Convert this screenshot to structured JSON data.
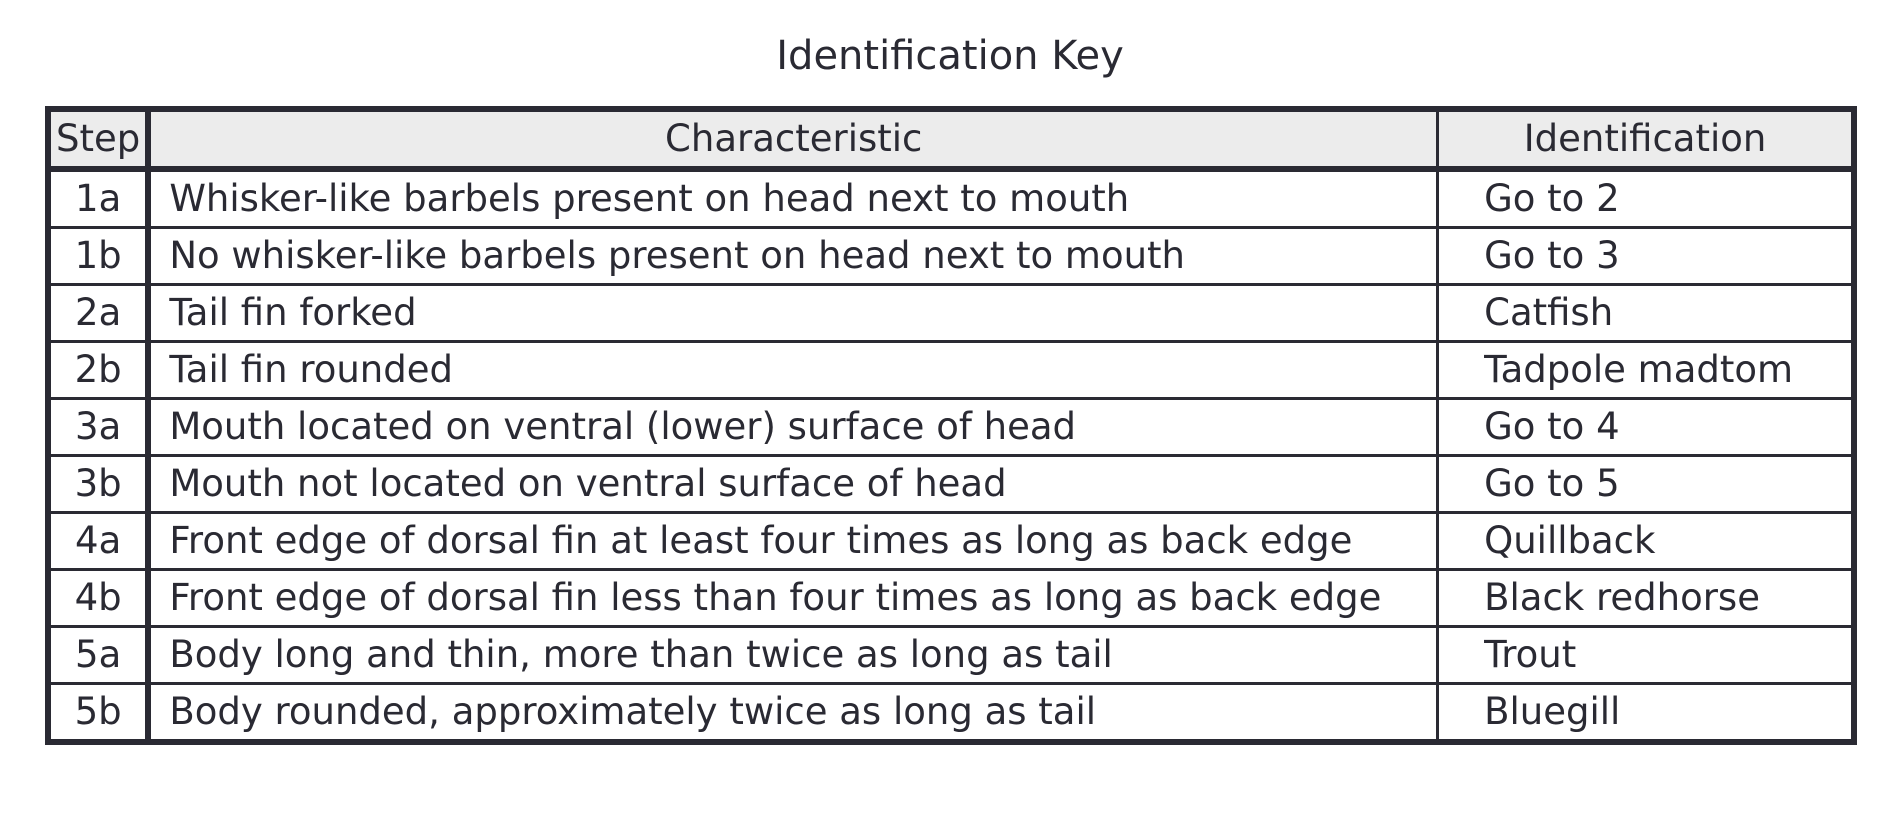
{
  "title": "Identification Key",
  "columns": {
    "step": "Step",
    "characteristic": "Characteristic",
    "identification": "Identification"
  },
  "rows": [
    {
      "step": "1a",
      "characteristic": "Whisker-like barbels present on head next to mouth",
      "identification": "Go to 2"
    },
    {
      "step": "1b",
      "characteristic": "No whisker-like barbels present on head next to mouth",
      "identification": "Go to 3"
    },
    {
      "step": "2a",
      "characteristic": "Tail fin forked",
      "identification": "Catfish"
    },
    {
      "step": "2b",
      "characteristic": "Tail fin rounded",
      "identification": "Tadpole madtom"
    },
    {
      "step": "3a",
      "characteristic": "Mouth located on ventral (lower) surface of head",
      "identification": "Go to 4"
    },
    {
      "step": "3b",
      "characteristic": "Mouth not located on ventral surface of head",
      "identification": "Go to 5"
    },
    {
      "step": "4a",
      "characteristic": "Front edge of dorsal fin at least four times as long as back edge",
      "identification": "Quillback"
    },
    {
      "step": "4b",
      "characteristic": "Front edge of dorsal fin less than four times as long as back edge",
      "identification": "Black redhorse"
    },
    {
      "step": "5a",
      "characteristic": "Body long and thin, more than twice as long as tail",
      "identification": "Trout"
    },
    {
      "step": "5b",
      "characteristic": "Body rounded, approximately twice as long as tail",
      "identification": "Bluegill"
    }
  ]
}
